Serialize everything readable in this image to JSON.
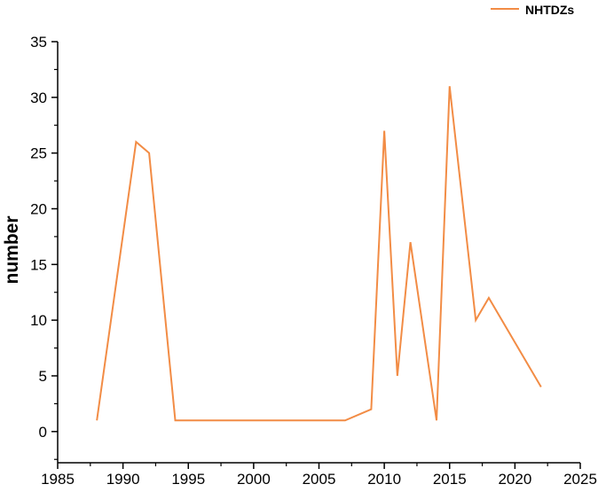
{
  "chart_data": {
    "type": "line",
    "title": "",
    "xlabel": "",
    "ylabel": "number",
    "xlim": [
      1985,
      2025
    ],
    "ylim": [
      -2.8,
      35
    ],
    "xticks": [
      1985,
      1990,
      1995,
      2000,
      2005,
      2010,
      2015,
      2020,
      2025
    ],
    "yticks": [
      0,
      5,
      10,
      15,
      20,
      25,
      30,
      35
    ],
    "grid": false,
    "legend_placement": "top-right",
    "series": [
      {
        "name": "NHTDZs",
        "color": "#F28C45",
        "x": [
          1988,
          1991,
          1992,
          1994,
          2007,
          2009,
          2010,
          2011,
          2012,
          2014,
          2015,
          2017,
          2018,
          2022
        ],
        "y": [
          1,
          26,
          25,
          1,
          1,
          2,
          27,
          5,
          17,
          1,
          31,
          10,
          12,
          4
        ]
      }
    ]
  }
}
